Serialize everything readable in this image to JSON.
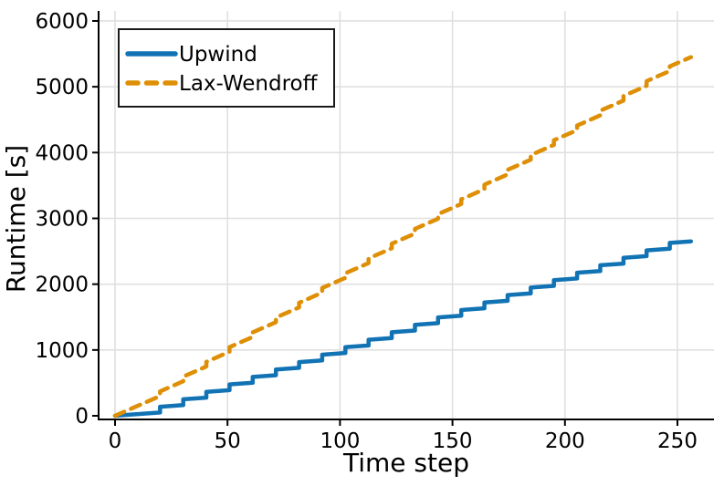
{
  "colors": {
    "upwind": "#1173b4",
    "lax_wendroff": "#de8f05",
    "grid": "#e0e0e0",
    "axis": "#000000",
    "background": "#ffffff"
  },
  "chart_data": {
    "type": "line",
    "xlabel": "Time step",
    "ylabel": "Runtime [s]",
    "xlim": [
      -7.3,
      266.2
    ],
    "ylim": [
      -55,
      6150
    ],
    "xticks": [
      0,
      50,
      100,
      150,
      200,
      250
    ],
    "yticks": [
      0,
      1000,
      2000,
      3000,
      4000,
      5000,
      6000
    ],
    "grid": true,
    "legend_position": "top-left",
    "series": [
      {
        "name": "Upwind",
        "color": "#1173b4",
        "style": "solid",
        "line_width": 4.5,
        "points": [
          [
            0,
            0
          ],
          [
            20,
            50
          ],
          [
            20,
            137
          ],
          [
            30.3,
            163
          ],
          [
            30.3,
            251
          ],
          [
            40.6,
            276
          ],
          [
            40.6,
            364
          ],
          [
            50.9,
            389
          ],
          [
            50.9,
            477
          ],
          [
            61.2,
            503
          ],
          [
            61.2,
            590
          ],
          [
            71.5,
            616
          ],
          [
            71.5,
            703
          ],
          [
            81.8,
            729
          ],
          [
            81.8,
            816
          ],
          [
            92.1,
            842
          ],
          [
            92.1,
            929
          ],
          [
            102.4,
            955
          ],
          [
            102.4,
            1043
          ],
          [
            112.7,
            1068
          ],
          [
            112.7,
            1156
          ],
          [
            123,
            1182
          ],
          [
            123,
            1269
          ],
          [
            133.3,
            1295
          ],
          [
            133.3,
            1382
          ],
          [
            143.6,
            1408
          ],
          [
            143.6,
            1495
          ],
          [
            153.9,
            1521
          ],
          [
            153.9,
            1608
          ],
          [
            164.2,
            1634
          ],
          [
            164.2,
            1721
          ],
          [
            174.5,
            1747
          ],
          [
            174.5,
            1835
          ],
          [
            184.8,
            1860
          ],
          [
            184.8,
            1948
          ],
          [
            195.1,
            1974
          ],
          [
            195.1,
            2061
          ],
          [
            205.4,
            2087
          ],
          [
            205.4,
            2174
          ],
          [
            215.7,
            2200
          ],
          [
            215.7,
            2287
          ],
          [
            226,
            2313
          ],
          [
            226,
            2400
          ],
          [
            236.3,
            2426
          ],
          [
            236.3,
            2514
          ],
          [
            246.6,
            2539
          ],
          [
            246.6,
            2627
          ],
          [
            256,
            2650
          ]
        ]
      },
      {
        "name": "Lax-Wendroff",
        "color": "#de8f05",
        "style": "dashed",
        "line_width": 4.5,
        "points": [
          [
            0,
            0
          ],
          [
            20,
            300
          ],
          [
            20,
            370
          ],
          [
            30.3,
            525
          ],
          [
            30.3,
            595
          ],
          [
            40.6,
            749
          ],
          [
            40.6,
            819
          ],
          [
            50.9,
            974
          ],
          [
            50.9,
            1044
          ],
          [
            61.2,
            1198
          ],
          [
            61.2,
            1268
          ],
          [
            71.5,
            1423
          ],
          [
            71.5,
            1493
          ],
          [
            81.8,
            1647
          ],
          [
            81.8,
            1717
          ],
          [
            92.1,
            1872
          ],
          [
            92.1,
            1942
          ],
          [
            102.4,
            2096
          ],
          [
            102.4,
            2166
          ],
          [
            112.7,
            2321
          ],
          [
            112.7,
            2391
          ],
          [
            123,
            2545
          ],
          [
            123,
            2615
          ],
          [
            133.3,
            2770
          ],
          [
            133.3,
            2840
          ],
          [
            143.6,
            2994
          ],
          [
            143.6,
            3064
          ],
          [
            153.9,
            3219
          ],
          [
            153.9,
            3289
          ],
          [
            164.2,
            3443
          ],
          [
            164.2,
            3513
          ],
          [
            174.5,
            3668
          ],
          [
            174.5,
            3738
          ],
          [
            184.8,
            3892
          ],
          [
            184.8,
            3962
          ],
          [
            195.1,
            4117
          ],
          [
            195.1,
            4187
          ],
          [
            205.4,
            4341
          ],
          [
            205.4,
            4411
          ],
          [
            215.7,
            4566
          ],
          [
            215.7,
            4636
          ],
          [
            226,
            4790
          ],
          [
            226,
            4860
          ],
          [
            236.3,
            5015
          ],
          [
            236.3,
            5085
          ],
          [
            246.6,
            5239
          ],
          [
            246.6,
            5309
          ],
          [
            256,
            5450
          ]
        ]
      }
    ]
  }
}
